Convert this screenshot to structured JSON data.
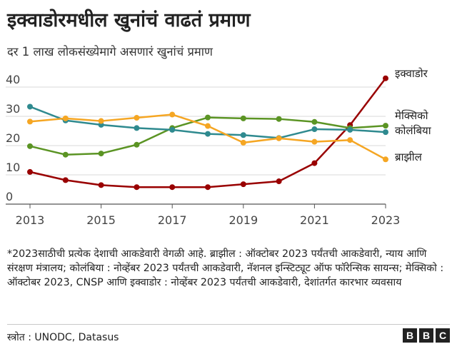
{
  "title": "इक्वाडोरमधील खुनांचं वाढतं प्रमाण",
  "subtitle": "दर 1 लाख लोकसंख्येमागे असणारं खुनांचं प्रमाण",
  "note": "*2023साठीची प्रत्येक देशाची आकडेवारी वेगळी आहे. ब्राझील : ऑक्टोबर 2023 पर्यंतची आकडेवारी, न्याय आणि संरक्षण मंत्रालय; कोलंबिया : नोव्हेंबर 2023 पर्यंतची आकडेवारी, नॅशनल इन्स्टिट्यूट ऑफ फॉरेन्सिक सायन्स; मेक्सिको : ऑक्टोबर 2023, CNSP आणि इक्वाडोर : नोव्हेंबर 2023 पर्यंतची आकडेवारी, देशांतर्गत कारभार व्यवसाय",
  "source": "स्त्रोत : UNODC, Datasus",
  "logo": [
    "B",
    "B",
    "C"
  ],
  "chart_data": {
    "type": "line",
    "x": [
      2013,
      2014,
      2015,
      2016,
      2017,
      2018,
      2019,
      2020,
      2021,
      2022,
      2023
    ],
    "xticks": [
      "2013",
      "2015",
      "2017",
      "2019",
      "2021",
      "2023"
    ],
    "yticks": [
      "0",
      "10",
      "20",
      "30",
      "40"
    ],
    "ylim": [
      0,
      45
    ],
    "grid": true,
    "legend": "line-end labels",
    "series": [
      {
        "name": "इक्वाडोर",
        "color": "#990000",
        "values": [
          11.0,
          8.2,
          6.5,
          5.8,
          5.8,
          5.8,
          6.8,
          7.8,
          14.0,
          27.0,
          43.0
        ]
      },
      {
        "name": "मेक्सिको",
        "color": "#5b9424",
        "values": [
          19.8,
          16.9,
          17.3,
          20.3,
          26.0,
          29.6,
          29.3,
          29.1,
          28.1,
          26.0,
          26.8
        ]
      },
      {
        "name": "कोलंबिया",
        "color": "#2f8a8f",
        "values": [
          33.3,
          28.6,
          27.1,
          26.0,
          25.4,
          24.0,
          23.6,
          22.6,
          25.6,
          25.4,
          24.6
        ]
      },
      {
        "name": "ब्राझील",
        "color": "#f5a623",
        "values": [
          28.2,
          29.3,
          28.4,
          29.5,
          30.6,
          26.7,
          21.0,
          22.5,
          21.3,
          21.9,
          15.3
        ]
      }
    ]
  }
}
